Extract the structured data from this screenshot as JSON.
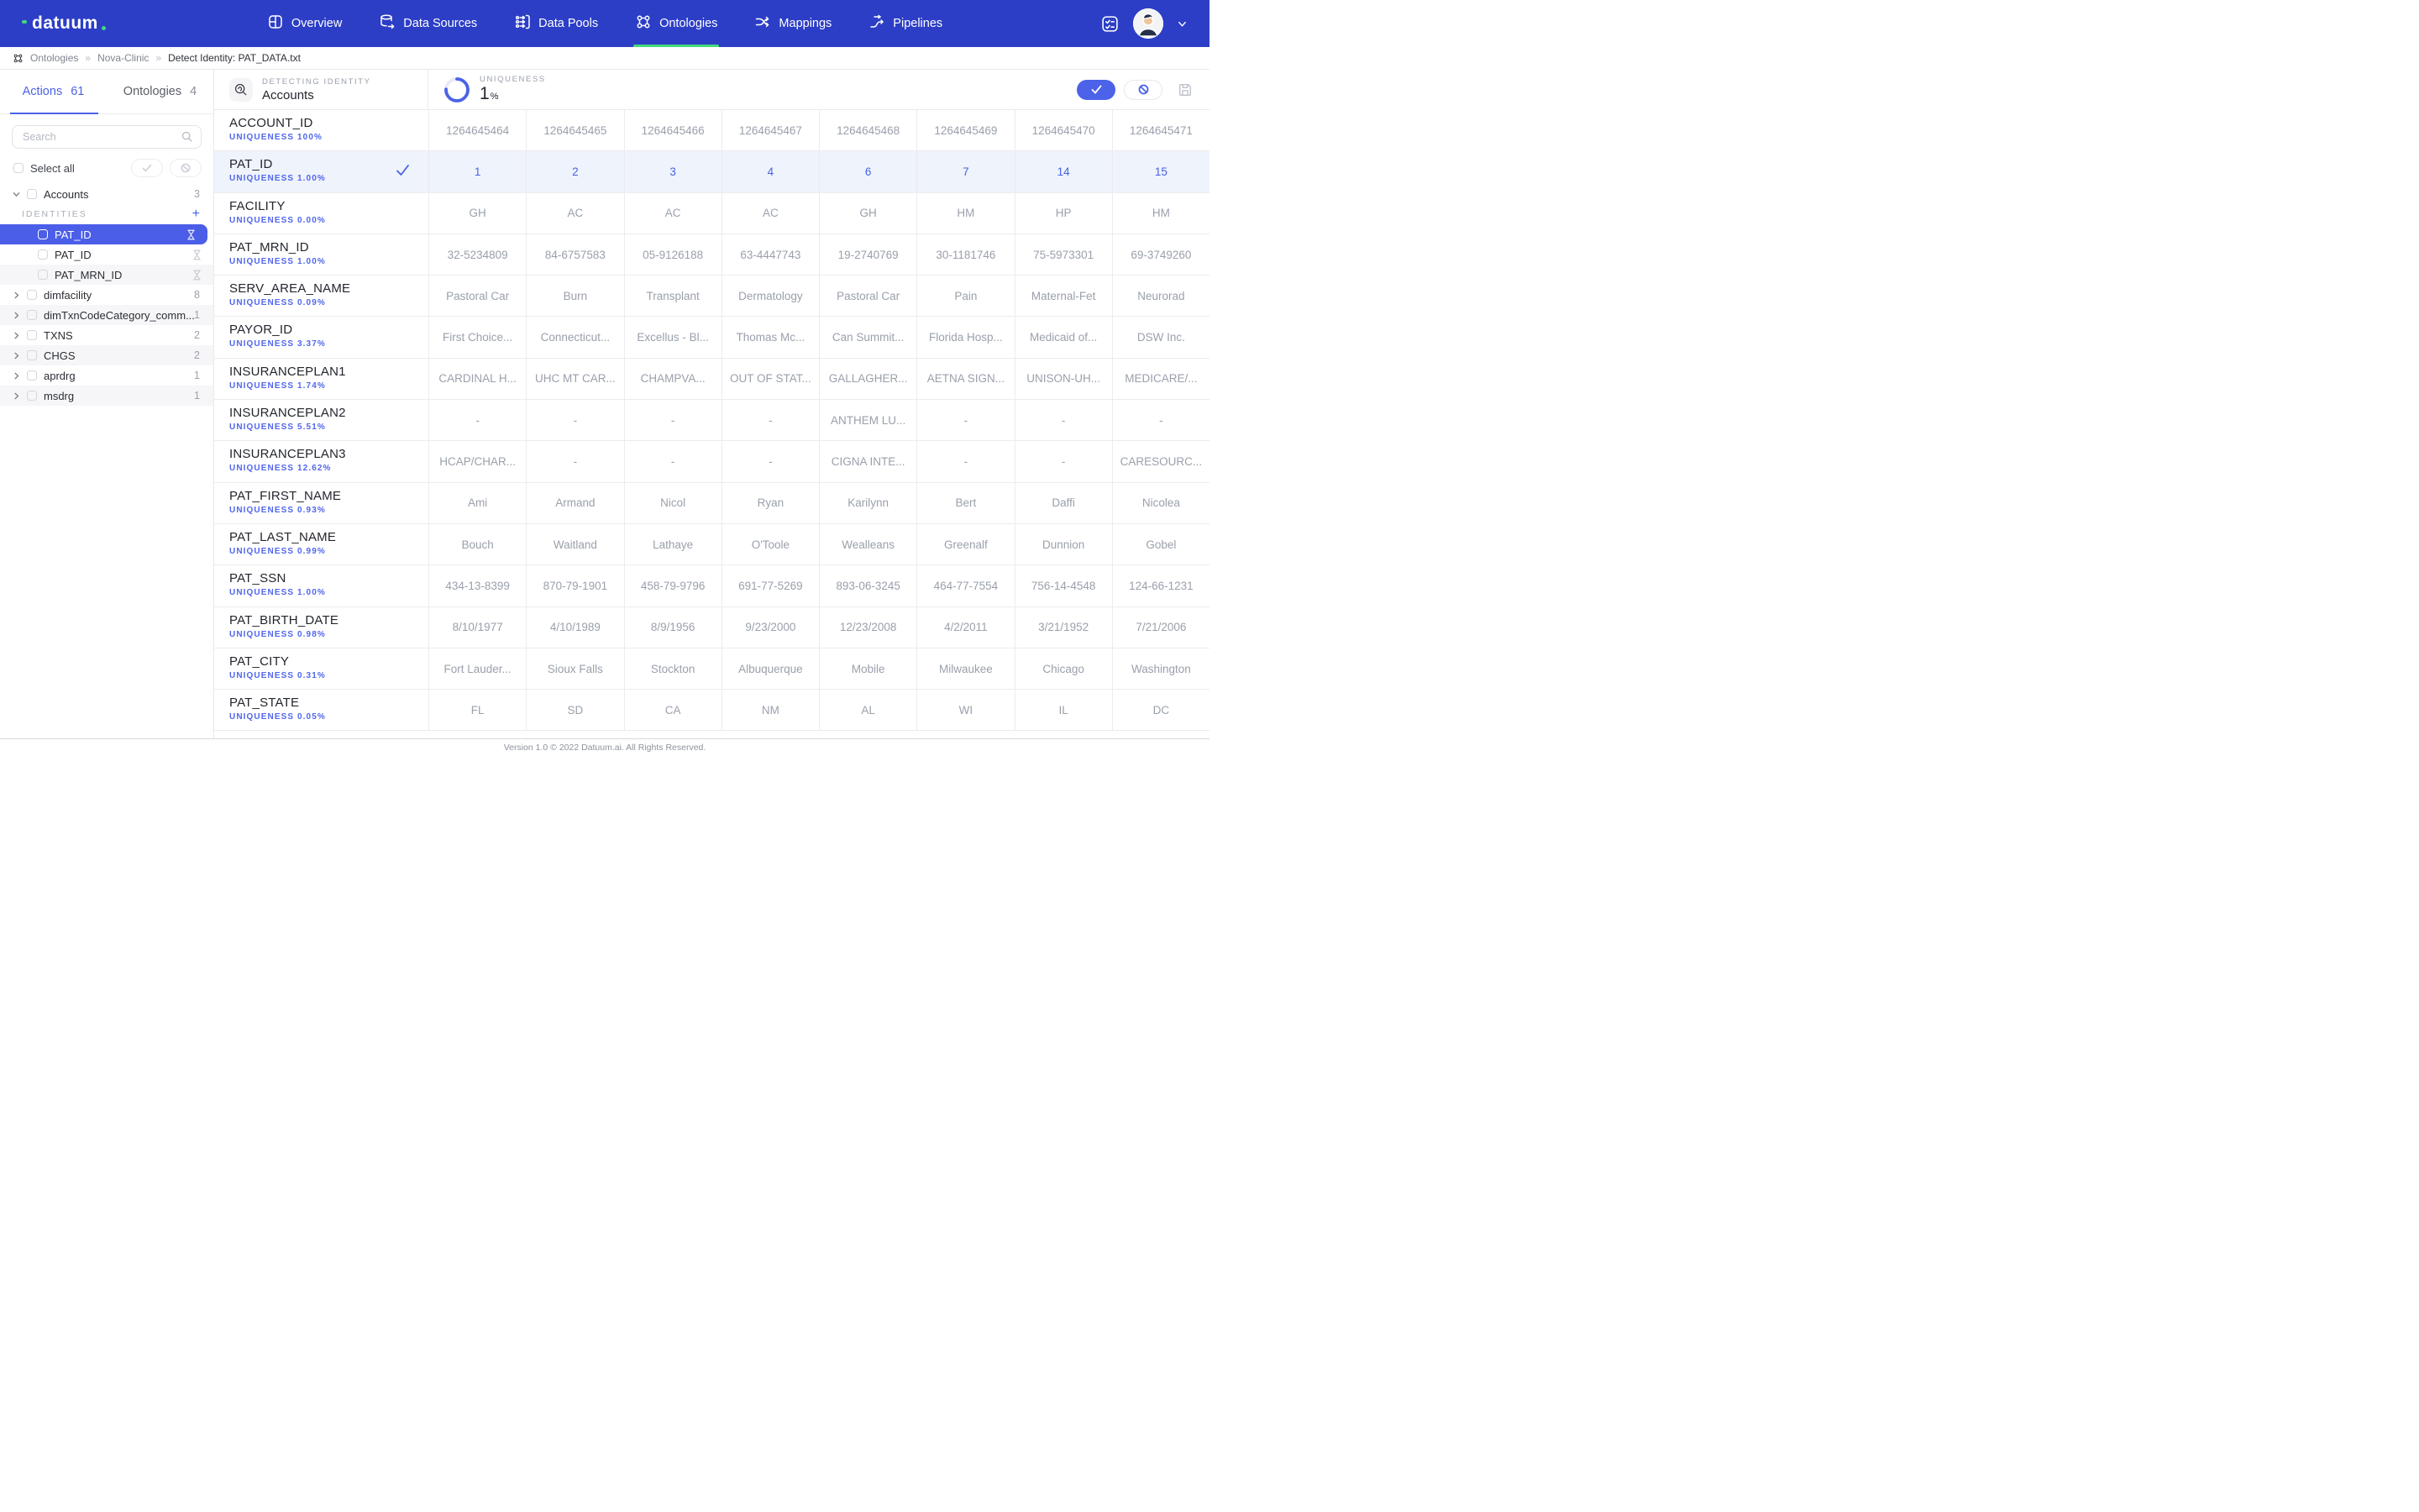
{
  "colors": {
    "nav_bg": "#2c3ec6",
    "accent_blue": "#4b62e9",
    "accent_green": "#43d97c",
    "selected_row_bg": "#eff3fb",
    "selected_tree_bg": "#4b5ee8",
    "cell_text": "#9aa0ab",
    "uniqueness_text": "#5066ee"
  },
  "nav": {
    "brand": "datuum",
    "items": [
      {
        "label": "Overview",
        "active": false
      },
      {
        "label": "Data Sources",
        "active": false
      },
      {
        "label": "Data Pools",
        "active": false
      },
      {
        "label": "Ontologies",
        "active": true
      },
      {
        "label": "Mappings",
        "active": false
      },
      {
        "label": "Pipelines",
        "active": false
      }
    ]
  },
  "breadcrumb": {
    "separator": "»",
    "items": [
      "Ontologies",
      "Nova-Clinic",
      "Detect Identity: PAT_DATA.txt"
    ]
  },
  "sidebar": {
    "tabs": [
      {
        "label": "Actions",
        "count": "61",
        "active": true
      },
      {
        "label": "Ontologies",
        "count": "4",
        "active": false
      }
    ],
    "search_placeholder": "Search",
    "select_all_label": "Select all",
    "tree": [
      {
        "type": "group",
        "label": "Accounts",
        "count": "3",
        "expanded": true
      },
      {
        "type": "section",
        "label": "IDENTITIES"
      },
      {
        "type": "identity",
        "label": "PAT_ID",
        "selected": true
      },
      {
        "type": "identity",
        "label": "PAT_ID"
      },
      {
        "type": "identity",
        "label": "PAT_MRN_ID",
        "shaded": true
      },
      {
        "type": "group",
        "label": "dimfacility",
        "count": "8"
      },
      {
        "type": "group",
        "label": "dimTxnCodeCategory_comm...",
        "count": "1",
        "shaded": true
      },
      {
        "type": "group",
        "label": "TXNS",
        "count": "2"
      },
      {
        "type": "group",
        "label": "CHGS",
        "count": "2",
        "shaded": true
      },
      {
        "type": "group",
        "label": "aprdrg",
        "count": "1"
      },
      {
        "type": "group",
        "label": "msdrg",
        "count": "1",
        "shaded": true
      }
    ]
  },
  "header": {
    "detecting_label": "DETECTING IDENTITY",
    "identity_name": "Accounts",
    "uniqueness_label": "UNIQUENESS",
    "uniqueness_value": "1",
    "uniqueness_unit": "%",
    "uniqueness_ring_percent": 76
  },
  "table": {
    "rows": [
      {
        "name": "ACCOUNT_ID",
        "uniqueness": "UNIQUENESS 100%",
        "selected": false,
        "values": [
          "1264645464",
          "1264645465",
          "1264645466",
          "1264645467",
          "1264645468",
          "1264645469",
          "1264645470",
          "1264645471"
        ]
      },
      {
        "name": "PAT_ID",
        "uniqueness": "UNIQUENESS 1.00%",
        "selected": true,
        "values": [
          "1",
          "2",
          "3",
          "4",
          "6",
          "7",
          "14",
          "15"
        ]
      },
      {
        "name": "FACILITY",
        "uniqueness": "UNIQUENESS 0.00%",
        "selected": false,
        "values": [
          "GH",
          "AC",
          "AC",
          "AC",
          "GH",
          "HM",
          "HP",
          "HM"
        ]
      },
      {
        "name": "PAT_MRN_ID",
        "uniqueness": "UNIQUENESS 1.00%",
        "selected": false,
        "values": [
          "32-5234809",
          "84-6757583",
          "05-9126188",
          "63-4447743",
          "19-2740769",
          "30-1181746",
          "75-5973301",
          "69-3749260"
        ]
      },
      {
        "name": "SERV_AREA_NAME",
        "uniqueness": "UNIQUENESS 0.09%",
        "selected": false,
        "values": [
          "Pastoral Car",
          "Burn",
          "Transplant",
          "Dermatology",
          "Pastoral Car",
          "Pain",
          "Maternal-Fet",
          "Neurorad"
        ]
      },
      {
        "name": "PAYOR_ID",
        "uniqueness": "UNIQUENESS 3.37%",
        "selected": false,
        "values": [
          "First Choice...",
          "Connecticut...",
          "Excellus - Bl...",
          "Thomas Mc...",
          "Can Summit...",
          "Florida Hosp...",
          "Medicaid of...",
          "DSW Inc."
        ]
      },
      {
        "name": "INSURANCEPLAN1",
        "uniqueness": "UNIQUENESS 1.74%",
        "selected": false,
        "values": [
          "CARDINAL H...",
          "UHC MT CAR...",
          "CHAMPVA...",
          "OUT OF STAT...",
          "GALLAGHER...",
          "AETNA SIGN...",
          "UNISON-UH...",
          "MEDICARE/..."
        ]
      },
      {
        "name": "INSURANCEPLAN2",
        "uniqueness": "UNIQUENESS 5.51%",
        "selected": false,
        "values": [
          "-",
          "-",
          "-",
          "-",
          "ANTHEM LU...",
          "-",
          "-",
          "-"
        ]
      },
      {
        "name": "INSURANCEPLAN3",
        "uniqueness": "UNIQUENESS 12.62%",
        "selected": false,
        "values": [
          "HCAP/CHAR...",
          "-",
          "-",
          "-",
          "CIGNA INTE...",
          "-",
          "-",
          "CARESOURC..."
        ]
      },
      {
        "name": "PAT_FIRST_NAME",
        "uniqueness": "UNIQUENESS 0.93%",
        "selected": false,
        "values": [
          "Ami",
          "Armand",
          "Nicol",
          "Ryan",
          "Karilynn",
          "Bert",
          "Daffi",
          "Nicolea"
        ]
      },
      {
        "name": "PAT_LAST_NAME",
        "uniqueness": "UNIQUENESS 0.99%",
        "selected": false,
        "values": [
          "Bouch",
          "Waitland",
          "Lathaye",
          "O'Toole",
          "Wealleans",
          "Greenalf",
          "Dunnion",
          "Gobel"
        ]
      },
      {
        "name": "PAT_SSN",
        "uniqueness": "UNIQUENESS 1.00%",
        "selected": false,
        "values": [
          "434-13-8399",
          "870-79-1901",
          "458-79-9796",
          "691-77-5269",
          "893-06-3245",
          "464-77-7554",
          "756-14-4548",
          "124-66-1231"
        ]
      },
      {
        "name": "PAT_BIRTH_DATE",
        "uniqueness": "UNIQUENESS 0.98%",
        "selected": false,
        "values": [
          "8/10/1977",
          "4/10/1989",
          "8/9/1956",
          "9/23/2000",
          "12/23/2008",
          "4/2/2011",
          "3/21/1952",
          "7/21/2006"
        ]
      },
      {
        "name": "PAT_CITY",
        "uniqueness": "UNIQUENESS 0.31%",
        "selected": false,
        "values": [
          "Fort Lauder...",
          "Sioux Falls",
          "Stockton",
          "Albuquerque",
          "Mobile",
          "Milwaukee",
          "Chicago",
          "Washington"
        ]
      },
      {
        "name": "PAT_STATE",
        "uniqueness": "UNIQUENESS 0.05%",
        "selected": false,
        "values": [
          "FL",
          "SD",
          "CA",
          "NM",
          "AL",
          "WI",
          "IL",
          "DC"
        ]
      }
    ]
  },
  "footer": {
    "text": "Version 1.0 © 2022 Datuum.ai. All Rights Reserved."
  }
}
